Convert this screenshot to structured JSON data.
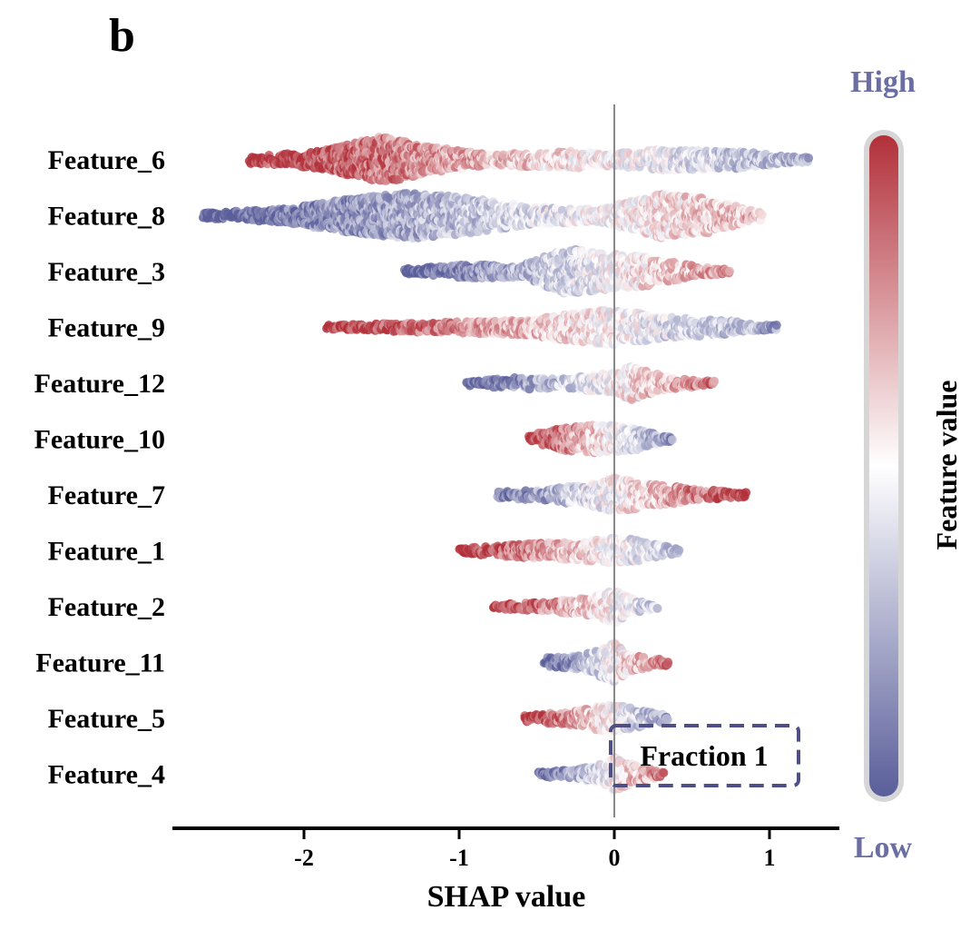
{
  "panel_label": "b",
  "chart_data": {
    "type": "scatter",
    "subtype": "shap-beeswarm",
    "xlabel": "SHAP value",
    "xlim": [
      -2.85,
      1.45
    ],
    "xticks": [
      -2,
      -1,
      0,
      1
    ],
    "xtick_labels": [
      "-2",
      "-1",
      "0",
      "1"
    ],
    "colorbar": {
      "title": "Feature value",
      "high_label": "High",
      "low_label": "Low",
      "high_color": "#b2303a",
      "mid_color": "#ffffff",
      "low_color": "#5a5e9a",
      "label_color": "#6b6ea3"
    },
    "annotation": {
      "text": "Fraction 1",
      "border_color": "#4e5085"
    },
    "features": [
      {
        "name": "Feature_6",
        "min": -2.35,
        "max": 1.25,
        "density": [
          [
            -2.3,
            0.15
          ],
          [
            -1.9,
            0.35
          ],
          [
            -1.5,
            0.95
          ],
          [
            -1.2,
            0.55
          ],
          [
            -0.8,
            0.22
          ],
          [
            -0.3,
            0.35
          ],
          [
            0.0,
            0.25
          ],
          [
            0.3,
            0.45
          ],
          [
            0.8,
            0.35
          ],
          [
            1.2,
            0.1
          ]
        ],
        "color_dir": -1
      },
      {
        "name": "Feature_8",
        "min": -2.65,
        "max": 0.95,
        "density": [
          [
            -2.6,
            0.12
          ],
          [
            -2.1,
            0.3
          ],
          [
            -1.7,
            0.7
          ],
          [
            -1.3,
            0.95
          ],
          [
            -0.9,
            0.7
          ],
          [
            -0.5,
            0.35
          ],
          [
            -0.1,
            0.25
          ],
          [
            0.3,
            0.9
          ],
          [
            0.6,
            0.7
          ],
          [
            0.9,
            0.2
          ]
        ],
        "color_dir": 1
      },
      {
        "name": "Feature_3",
        "min": -1.35,
        "max": 0.75,
        "density": [
          [
            -1.3,
            0.12
          ],
          [
            -1.0,
            0.28
          ],
          [
            -0.6,
            0.25
          ],
          [
            -0.3,
            0.95
          ],
          [
            0.0,
            0.7
          ],
          [
            0.2,
            0.6
          ],
          [
            0.5,
            0.25
          ],
          [
            0.7,
            0.1
          ]
        ],
        "color_dir": 1
      },
      {
        "name": "Feature_9",
        "min": -1.85,
        "max": 1.05,
        "density": [
          [
            -1.8,
            0.1
          ],
          [
            -1.2,
            0.2
          ],
          [
            -0.6,
            0.3
          ],
          [
            -0.2,
            0.6
          ],
          [
            0.0,
            0.75
          ],
          [
            0.3,
            0.45
          ],
          [
            0.7,
            0.3
          ],
          [
            1.0,
            0.1
          ]
        ],
        "color_dir": -1
      },
      {
        "name": "Feature_12",
        "min": -0.95,
        "max": 0.65,
        "density": [
          [
            -0.9,
            0.1
          ],
          [
            -0.6,
            0.25
          ],
          [
            -0.3,
            0.2
          ],
          [
            0.0,
            0.45
          ],
          [
            0.1,
            0.7
          ],
          [
            0.35,
            0.25
          ],
          [
            0.6,
            0.1
          ]
        ],
        "color_dir": 1
      },
      {
        "name": "Feature_10",
        "min": -0.55,
        "max": 0.38,
        "density": [
          [
            -0.55,
            0.15
          ],
          [
            -0.35,
            0.45
          ],
          [
            -0.15,
            0.6
          ],
          [
            0.0,
            0.55
          ],
          [
            0.1,
            0.5
          ],
          [
            0.3,
            0.15
          ]
        ],
        "color_dir": -1
      },
      {
        "name": "Feature_7",
        "min": -0.75,
        "max": 0.85,
        "density": [
          [
            -0.75,
            0.12
          ],
          [
            -0.4,
            0.25
          ],
          [
            -0.1,
            0.5
          ],
          [
            0.0,
            0.7
          ],
          [
            0.15,
            0.55
          ],
          [
            0.45,
            0.3
          ],
          [
            0.8,
            0.1
          ]
        ],
        "color_dir": 1
      },
      {
        "name": "Feature_1",
        "min": -1.0,
        "max": 0.42,
        "density": [
          [
            -1.0,
            0.1
          ],
          [
            -0.7,
            0.25
          ],
          [
            -0.35,
            0.35
          ],
          [
            -0.1,
            0.45
          ],
          [
            0.05,
            0.55
          ],
          [
            0.2,
            0.35
          ],
          [
            0.4,
            0.12
          ]
        ],
        "color_dir": -1
      },
      {
        "name": "Feature_2",
        "min": -0.78,
        "max": 0.28,
        "density": [
          [
            -0.75,
            0.1
          ],
          [
            -0.45,
            0.18
          ],
          [
            -0.15,
            0.4
          ],
          [
            0.0,
            0.7
          ],
          [
            0.1,
            0.35
          ],
          [
            0.25,
            0.1
          ]
        ],
        "color_dir": -1
      },
      {
        "name": "Feature_11",
        "min": -0.45,
        "max": 0.35,
        "density": [
          [
            -0.45,
            0.2
          ],
          [
            -0.2,
            0.3
          ],
          [
            0.0,
            0.8
          ],
          [
            0.1,
            0.35
          ],
          [
            0.3,
            0.12
          ]
        ],
        "color_dir": 1
      },
      {
        "name": "Feature_5",
        "min": -0.58,
        "max": 0.35,
        "density": [
          [
            -0.58,
            0.15
          ],
          [
            -0.3,
            0.25
          ],
          [
            -0.05,
            0.55
          ],
          [
            0.05,
            0.5
          ],
          [
            0.2,
            0.3
          ],
          [
            0.35,
            0.12
          ]
        ],
        "color_dir": -1
      },
      {
        "name": "Feature_4",
        "min": -0.5,
        "max": 0.32,
        "density": [
          [
            -0.5,
            0.08
          ],
          [
            -0.25,
            0.2
          ],
          [
            -0.05,
            0.45
          ],
          [
            0.0,
            0.7
          ],
          [
            0.15,
            0.35
          ],
          [
            0.3,
            0.1
          ]
        ],
        "color_dir": 1
      }
    ]
  }
}
